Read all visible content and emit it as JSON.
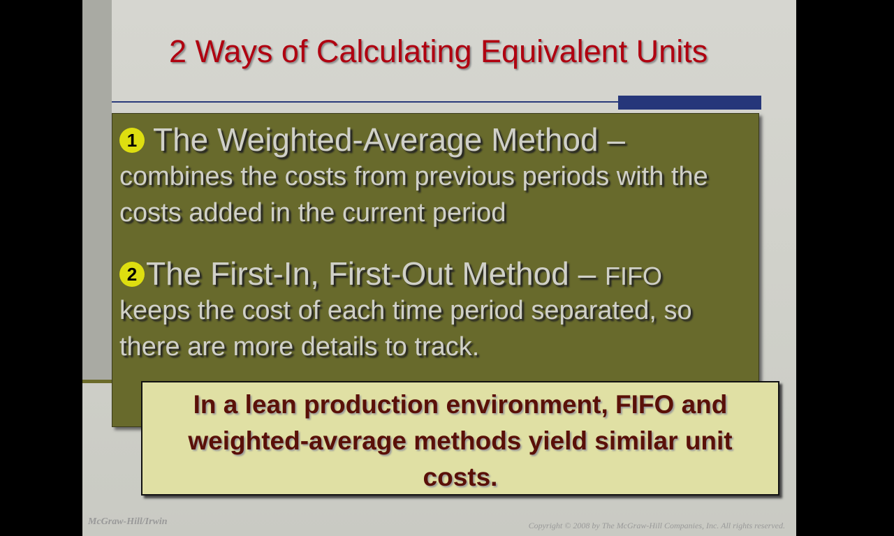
{
  "slide": {
    "title": "2 Ways of Calculating Equivalent Units",
    "items": [
      {
        "number": "1",
        "heading": "The Weighted-Average Method –",
        "tag": null,
        "body": "combines the costs from previous periods with the costs added in the current period"
      },
      {
        "number": "2",
        "heading": "The First-In, First-Out Method –",
        "tag": "FIFO",
        "body": "keeps the cost of each time period separated, so there are more details to track."
      }
    ],
    "callout": "In a lean production environment, FIFO and weighted-average methods yield similar unit costs.",
    "footer_left": "McGraw-Hill/Irwin",
    "footer_right": "Copyright © 2008 by The McGraw-Hill Companies, Inc. All rights reserved."
  }
}
